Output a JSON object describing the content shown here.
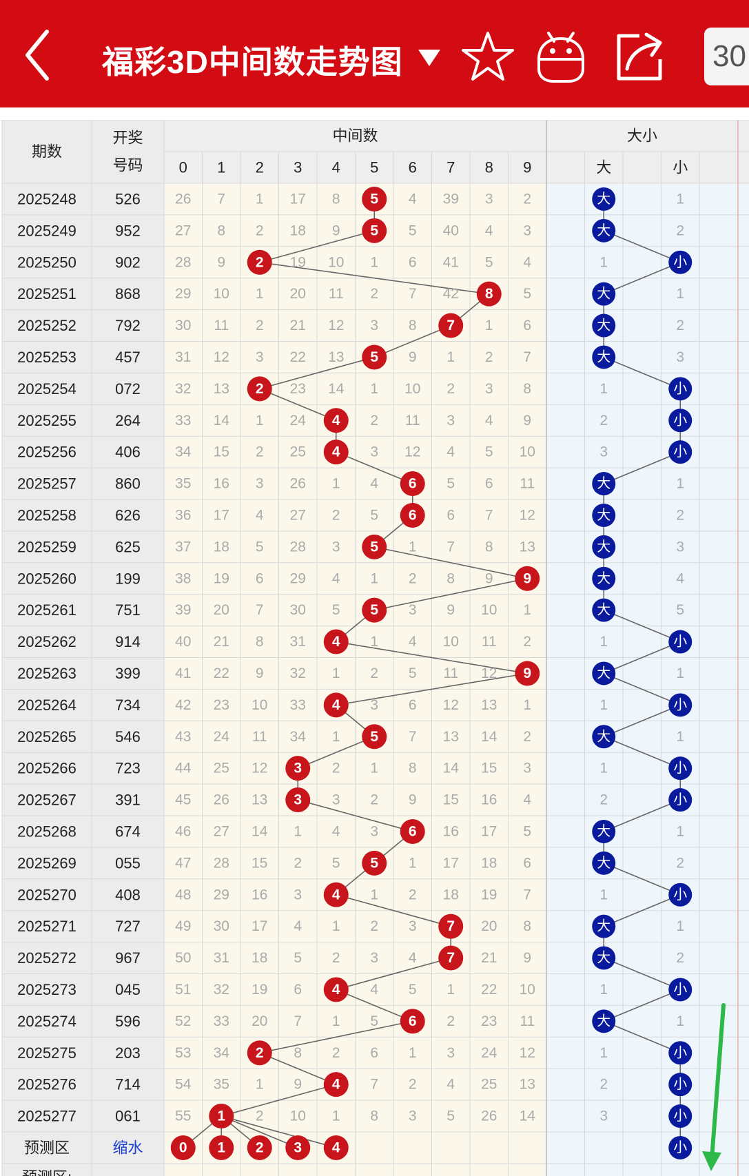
{
  "header": {
    "title": "福彩3D中间数走势图",
    "title_caret_icon": "triangle-down-icon",
    "back_icon": "chevron-left-icon",
    "favorite_icon": "star-icon",
    "android_icon": "android-icon",
    "share_icon": "share-icon",
    "period_count": "30"
  },
  "colors": {
    "brand_red": "#d20c12",
    "ball_red": "#c8141b",
    "ball_blue": "#0a1a9c",
    "line_gray": "#666666",
    "miss_gray": "#aaaaaa"
  },
  "table": {
    "col_issue": "期数",
    "col_number_l1": "开奖",
    "col_number_l2": "号码",
    "group_mid": "中间数",
    "group_bigsmall": "大小",
    "digits": [
      "0",
      "1",
      "2",
      "3",
      "4",
      "5",
      "6",
      "7",
      "8",
      "9"
    ],
    "big_label": "大",
    "small_label": "小",
    "rows": [
      {
        "issue": "2025248",
        "number": "526",
        "mid": 5,
        "miss": [
          26,
          7,
          1,
          17,
          8,
          null,
          4,
          39,
          3,
          2
        ],
        "size": "big",
        "other": 1
      },
      {
        "issue": "2025249",
        "number": "952",
        "mid": 5,
        "miss": [
          27,
          8,
          2,
          18,
          9,
          null,
          5,
          40,
          4,
          3
        ],
        "size": "big",
        "other": 2
      },
      {
        "issue": "2025250",
        "number": "902",
        "mid": 2,
        "miss": [
          28,
          9,
          null,
          19,
          10,
          1,
          6,
          41,
          5,
          4
        ],
        "size": "small",
        "other": 1
      },
      {
        "issue": "2025251",
        "number": "868",
        "mid": 8,
        "miss": [
          29,
          10,
          1,
          20,
          11,
          2,
          7,
          42,
          null,
          5
        ],
        "size": "big",
        "other": 1
      },
      {
        "issue": "2025252",
        "number": "792",
        "mid": 7,
        "miss": [
          30,
          11,
          2,
          21,
          12,
          3,
          8,
          null,
          1,
          6
        ],
        "size": "big",
        "other": 2
      },
      {
        "issue": "2025253",
        "number": "457",
        "mid": 5,
        "miss": [
          31,
          12,
          3,
          22,
          13,
          null,
          9,
          1,
          2,
          7
        ],
        "size": "big",
        "other": 3
      },
      {
        "issue": "2025254",
        "number": "072",
        "mid": 2,
        "miss": [
          32,
          13,
          null,
          23,
          14,
          1,
          10,
          2,
          3,
          8
        ],
        "size": "small",
        "other": 1
      },
      {
        "issue": "2025255",
        "number": "264",
        "mid": 4,
        "miss": [
          33,
          14,
          1,
          24,
          null,
          2,
          11,
          3,
          4,
          9
        ],
        "size": "small",
        "other": 2
      },
      {
        "issue": "2025256",
        "number": "406",
        "mid": 4,
        "miss": [
          34,
          15,
          2,
          25,
          null,
          3,
          12,
          4,
          5,
          10
        ],
        "size": "small",
        "other": 3
      },
      {
        "issue": "2025257",
        "number": "860",
        "mid": 6,
        "miss": [
          35,
          16,
          3,
          26,
          1,
          4,
          null,
          5,
          6,
          11
        ],
        "size": "big",
        "other": 1
      },
      {
        "issue": "2025258",
        "number": "626",
        "mid": 6,
        "miss": [
          36,
          17,
          4,
          27,
          2,
          5,
          null,
          6,
          7,
          12
        ],
        "size": "big",
        "other": 2
      },
      {
        "issue": "2025259",
        "number": "625",
        "mid": 5,
        "miss": [
          37,
          18,
          5,
          28,
          3,
          null,
          1,
          7,
          8,
          13
        ],
        "size": "big",
        "other": 3
      },
      {
        "issue": "2025260",
        "number": "199",
        "mid": 9,
        "miss": [
          38,
          19,
          6,
          29,
          4,
          1,
          2,
          8,
          9,
          null
        ],
        "size": "big",
        "other": 4
      },
      {
        "issue": "2025261",
        "number": "751",
        "mid": 5,
        "miss": [
          39,
          20,
          7,
          30,
          5,
          null,
          3,
          9,
          10,
          1
        ],
        "size": "big",
        "other": 5
      },
      {
        "issue": "2025262",
        "number": "914",
        "mid": 4,
        "miss": [
          40,
          21,
          8,
          31,
          null,
          1,
          4,
          10,
          11,
          2
        ],
        "size": "small",
        "other": 1
      },
      {
        "issue": "2025263",
        "number": "399",
        "mid": 9,
        "miss": [
          41,
          22,
          9,
          32,
          1,
          2,
          5,
          11,
          12,
          null
        ],
        "size": "big",
        "other": 1
      },
      {
        "issue": "2025264",
        "number": "734",
        "mid": 4,
        "miss": [
          42,
          23,
          10,
          33,
          null,
          3,
          6,
          12,
          13,
          1
        ],
        "size": "small",
        "other": 1
      },
      {
        "issue": "2025265",
        "number": "546",
        "mid": 5,
        "miss": [
          43,
          24,
          11,
          34,
          1,
          null,
          7,
          13,
          14,
          2
        ],
        "size": "big",
        "other": 1
      },
      {
        "issue": "2025266",
        "number": "723",
        "mid": 3,
        "miss": [
          44,
          25,
          12,
          null,
          2,
          1,
          8,
          14,
          15,
          3
        ],
        "size": "small",
        "other": 1
      },
      {
        "issue": "2025267",
        "number": "391",
        "mid": 3,
        "miss": [
          45,
          26,
          13,
          null,
          3,
          2,
          9,
          15,
          16,
          4
        ],
        "size": "small",
        "other": 2
      },
      {
        "issue": "2025268",
        "number": "674",
        "mid": 6,
        "miss": [
          46,
          27,
          14,
          1,
          4,
          3,
          null,
          16,
          17,
          5
        ],
        "size": "big",
        "other": 1
      },
      {
        "issue": "2025269",
        "number": "055",
        "mid": 5,
        "miss": [
          47,
          28,
          15,
          2,
          5,
          null,
          1,
          17,
          18,
          6
        ],
        "size": "big",
        "other": 2
      },
      {
        "issue": "2025270",
        "number": "408",
        "mid": 4,
        "miss": [
          48,
          29,
          16,
          3,
          null,
          1,
          2,
          18,
          19,
          7
        ],
        "size": "small",
        "other": 1
      },
      {
        "issue": "2025271",
        "number": "727",
        "mid": 7,
        "miss": [
          49,
          30,
          17,
          4,
          1,
          2,
          3,
          null,
          20,
          8
        ],
        "size": "big",
        "other": 1
      },
      {
        "issue": "2025272",
        "number": "967",
        "mid": 7,
        "miss": [
          50,
          31,
          18,
          5,
          2,
          3,
          4,
          null,
          21,
          9
        ],
        "size": "big",
        "other": 2
      },
      {
        "issue": "2025273",
        "number": "045",
        "mid": 4,
        "miss": [
          51,
          32,
          19,
          6,
          null,
          4,
          5,
          1,
          22,
          10
        ],
        "size": "small",
        "other": 1
      },
      {
        "issue": "2025274",
        "number": "596",
        "mid": 6,
        "miss": [
          52,
          33,
          20,
          7,
          1,
          5,
          null,
          2,
          23,
          11
        ],
        "size": "big",
        "other": 1
      },
      {
        "issue": "2025275",
        "number": "203",
        "mid": 2,
        "miss": [
          53,
          34,
          null,
          8,
          2,
          6,
          1,
          3,
          24,
          12
        ],
        "size": "small",
        "other": 1
      },
      {
        "issue": "2025276",
        "number": "714",
        "mid": 4,
        "miss": [
          54,
          35,
          1,
          9,
          null,
          7,
          2,
          4,
          25,
          13
        ],
        "size": "small",
        "other": 2
      },
      {
        "issue": "2025277",
        "number": "061",
        "mid": 1,
        "miss": [
          55,
          null,
          2,
          10,
          1,
          8,
          3,
          5,
          26,
          14
        ],
        "size": "small",
        "other": 3
      }
    ],
    "predict_label": "预测区",
    "predict_action": "缩水",
    "predict_balls": [
      0,
      1,
      2,
      3,
      4
    ],
    "predict_size": "small",
    "footer_partial": "预测区:"
  }
}
